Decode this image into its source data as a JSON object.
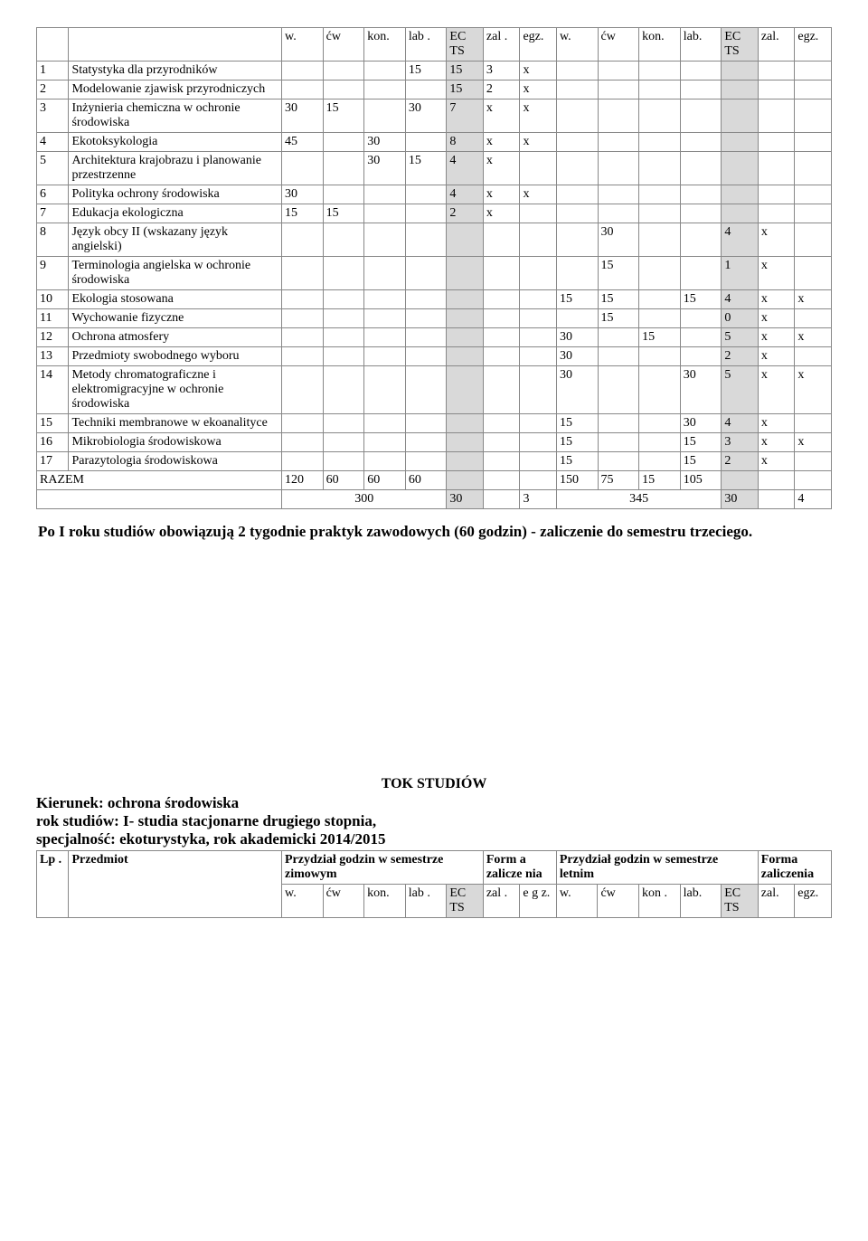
{
  "table1": {
    "headers_top": [
      "w.",
      "ćw",
      "kon.",
      "lab .",
      "EC TS",
      "zal .",
      "egz.",
      "w.",
      "ćw",
      "kon.",
      "lab.",
      "EC TS",
      "zal.",
      "egz."
    ],
    "rows": [
      {
        "n": "1",
        "name": "Statystyka dla przyrodników",
        "w1": "",
        "cw1": "",
        "k1": "",
        "l1": "15",
        "ec1": "15",
        "zal1": "3",
        "egz1": "x",
        "w2": "",
        "cw2": "",
        "k2": "",
        "l2": "",
        "ec2": "",
        "zal2": "",
        "egz2": ""
      },
      {
        "n": "2",
        "name": "Modelowanie zjawisk przyrodniczych",
        "w1": "",
        "cw1": "",
        "k1": "",
        "l1": "",
        "ec1": "15",
        "zal1": "2",
        "egz1": "x",
        "w2": "",
        "cw2": "",
        "k2": "",
        "l2": "",
        "ec2": "",
        "zal2": "",
        "egz2": ""
      },
      {
        "n": "3",
        "name": "Inżynieria chemiczna w ochronie środowiska",
        "w1": "30",
        "cw1": "15",
        "k1": "",
        "l1": "30",
        "ec1": "7",
        "zal1": "x",
        "egz1": "x",
        "w2": "",
        "cw2": "",
        "k2": "",
        "l2": "",
        "ec2": "",
        "zal2": "",
        "egz2": ""
      },
      {
        "n": "4",
        "name": "Ekotoksykologia",
        "w1": "45",
        "cw1": "",
        "k1": "30",
        "l1": "",
        "ec1": "8",
        "zal1": "x",
        "egz1": "x",
        "w2": "",
        "cw2": "",
        "k2": "",
        "l2": "",
        "ec2": "",
        "zal2": "",
        "egz2": ""
      },
      {
        "n": "5",
        "name": "Architektura krajobrazu i planowanie przestrzenne",
        "w1": "",
        "cw1": "",
        "k1": "30",
        "l1": "15",
        "ec1": "4",
        "zal1": "x",
        "egz1": "",
        "w2": "",
        "cw2": "",
        "k2": "",
        "l2": "",
        "ec2": "",
        "zal2": "",
        "egz2": ""
      },
      {
        "n": "6",
        "name": "Polityka ochrony środowiska",
        "w1": "30",
        "cw1": "",
        "k1": "",
        "l1": "",
        "ec1": "4",
        "zal1": "x",
        "egz1": "x",
        "w2": "",
        "cw2": "",
        "k2": "",
        "l2": "",
        "ec2": "",
        "zal2": "",
        "egz2": ""
      },
      {
        "n": "7",
        "name": "Edukacja ekologiczna",
        "w1": "15",
        "cw1": "15",
        "k1": "",
        "l1": "",
        "ec1": "2",
        "zal1": "x",
        "egz1": "",
        "w2": "",
        "cw2": "",
        "k2": "",
        "l2": "",
        "ec2": "",
        "zal2": "",
        "egz2": ""
      },
      {
        "n": "8",
        "name": "Język obcy II (wskazany język angielski)",
        "w1": "",
        "cw1": "",
        "k1": "",
        "l1": "",
        "ec1": "",
        "zal1": "",
        "egz1": "",
        "w2": "",
        "cw2": "30",
        "k2": "",
        "l2": "",
        "ec2": "4",
        "zal2": "x",
        "egz2": ""
      },
      {
        "n": "9",
        "name": "Terminologia angielska w ochronie środowiska",
        "w1": "",
        "cw1": "",
        "k1": "",
        "l1": "",
        "ec1": "",
        "zal1": "",
        "egz1": "",
        "w2": "",
        "cw2": "15",
        "k2": "",
        "l2": "",
        "ec2": "1",
        "zal2": "x",
        "egz2": ""
      },
      {
        "n": "10",
        "name": "Ekologia stosowana",
        "w1": "",
        "cw1": "",
        "k1": "",
        "l1": "",
        "ec1": "",
        "zal1": "",
        "egz1": "",
        "w2": "15",
        "cw2": "15",
        "k2": "",
        "l2": "15",
        "ec2": "4",
        "zal2": "x",
        "egz2": "x"
      },
      {
        "n": "11",
        "name": "Wychowanie fizyczne",
        "w1": "",
        "cw1": "",
        "k1": "",
        "l1": "",
        "ec1": "",
        "zal1": "",
        "egz1": "",
        "w2": "",
        "cw2": "15",
        "k2": "",
        "l2": "",
        "ec2": "0",
        "zal2": "x",
        "egz2": ""
      },
      {
        "n": "12",
        "name": "Ochrona atmosfery",
        "w1": "",
        "cw1": "",
        "k1": "",
        "l1": "",
        "ec1": "",
        "zal1": "",
        "egz1": "",
        "w2": "30",
        "cw2": "",
        "k2": "15",
        "l2": "",
        "ec2": "5",
        "zal2": "x",
        "egz2": "x"
      },
      {
        "n": "13",
        "name": "Przedmioty swobodnego wyboru",
        "w1": "",
        "cw1": "",
        "k1": "",
        "l1": "",
        "ec1": "",
        "zal1": "",
        "egz1": "",
        "w2": "30",
        "cw2": "",
        "k2": "",
        "l2": "",
        "ec2": "2",
        "zal2": "x",
        "egz2": ""
      },
      {
        "n": "14",
        "name": "Metody chromatograficzne i elektromigracyjne w ochronie środowiska",
        "w1": "",
        "cw1": "",
        "k1": "",
        "l1": "",
        "ec1": "",
        "zal1": "",
        "egz1": "",
        "w2": "30",
        "cw2": "",
        "k2": "",
        "l2": "30",
        "ec2": "5",
        "zal2": "x",
        "egz2": "x"
      },
      {
        "n": "15",
        "name": "Techniki membranowe w ekoanalityce",
        "w1": "",
        "cw1": "",
        "k1": "",
        "l1": "",
        "ec1": "",
        "zal1": "",
        "egz1": "",
        "w2": "15",
        "cw2": "",
        "k2": "",
        "l2": "30",
        "ec2": "4",
        "zal2": "x",
        "egz2": ""
      },
      {
        "n": "16",
        "name": "Mikrobiologia środowiskowa",
        "w1": "",
        "cw1": "",
        "k1": "",
        "l1": "",
        "ec1": "",
        "zal1": "",
        "egz1": "",
        "w2": "15",
        "cw2": "",
        "k2": "",
        "l2": "15",
        "ec2": "3",
        "zal2": "x",
        "egz2": "x"
      },
      {
        "n": "17",
        "name": "Parazytologia środowiskowa",
        "w1": "",
        "cw1": "",
        "k1": "",
        "l1": "",
        "ec1": "",
        "zal1": "",
        "egz1": "",
        "w2": "15",
        "cw2": "",
        "k2": "",
        "l2": "15",
        "ec2": "2",
        "zal2": "x",
        "egz2": ""
      }
    ],
    "razem_label": "RAZEM",
    "razem": [
      "120",
      "60",
      "60",
      "60",
      "",
      "",
      "",
      "150",
      "75",
      "15",
      "105",
      "",
      "",
      ""
    ],
    "totals": {
      "sum1": "300",
      "ects1": "30",
      "egz1": "3",
      "sum2": "345",
      "ects2": "30",
      "egz2": "4"
    }
  },
  "para1": "Po I roku studiów obowiązują 2 tygodnie praktyk zawodowych (60 godzin) - zaliczenie do semestru trzeciego.",
  "tok": "TOK STUDIÓW",
  "kierunek_label": "Kierunek: ",
  "kierunek_value": "ochrona środowiska",
  "rok": "rok studiów: I- studia stacjonarne drugiego stopnia,",
  "spec": "specjalność: ekoturystyka, rok akademicki 2014/2015",
  "table2": {
    "h_lp": "Lp .",
    "h_przedmiot": "Przedmiot",
    "h_pg_zim": "Przydział godzin w semestrze zimowym",
    "h_forma": "Form a zalicze nia",
    "h_pg_let": "Przydział godzin w semestrze letnim",
    "h_forma2": "Forma zaliczenia",
    "sub": [
      "w.",
      "ćw",
      "kon.",
      "lab .",
      "EC TS",
      "zal .",
      "e g z.",
      "w.",
      "ćw",
      "kon .",
      "lab.",
      "EC TS",
      "zal.",
      "egz."
    ]
  }
}
